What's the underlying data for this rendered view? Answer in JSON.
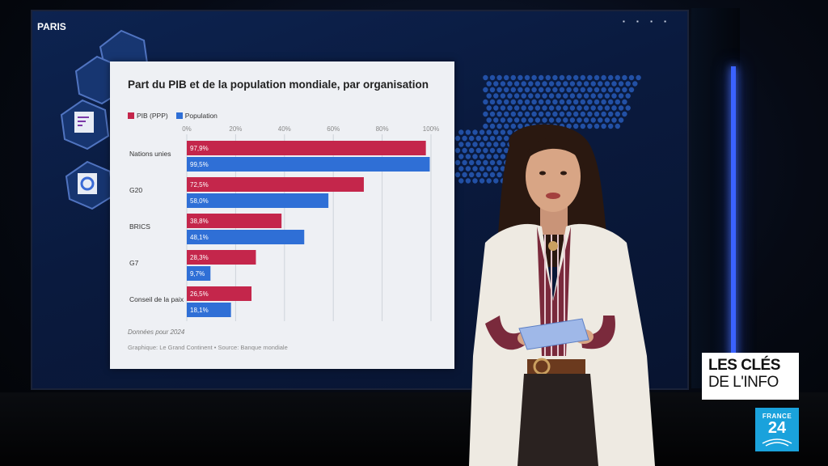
{
  "overlay": {
    "city": "PARIS",
    "program_line1": "LES CLÉS",
    "program_line2": "DE L'INFO",
    "channel_name": "FRANCE",
    "channel_number": "24"
  },
  "chart_data": {
    "type": "bar",
    "orientation": "horizontal",
    "title": "Part du PIB et de la population mondiale, par organisation",
    "xlabel": "",
    "ylabel": "",
    "xlim": [
      0,
      100
    ],
    "x_ticks": [
      "0%",
      "20%",
      "40%",
      "60%",
      "80%",
      "100%"
    ],
    "grid": true,
    "legend_position": "top-left",
    "categories": [
      "Nations unies",
      "G20",
      "BRICS",
      "G7",
      "Conseil de la paix"
    ],
    "series": [
      {
        "name": "PIB (PPP)",
        "color": "#c4264b",
        "values": [
          97.9,
          72.5,
          38.8,
          28.3,
          26.5
        ],
        "labels": [
          "97,9",
          "72,5",
          "38,8",
          "28,3",
          "26,5"
        ]
      },
      {
        "name": "Population",
        "color": "#2f6fd6",
        "values": [
          99.5,
          58.0,
          48.1,
          9.7,
          18.1
        ],
        "labels": [
          "99,5",
          "58,0",
          "48,1",
          "9,7",
          "18,1"
        ]
      }
    ],
    "note": "Données pour 2024",
    "source": "Graphique: Le Grand Continent • Source: Banque mondiale"
  }
}
